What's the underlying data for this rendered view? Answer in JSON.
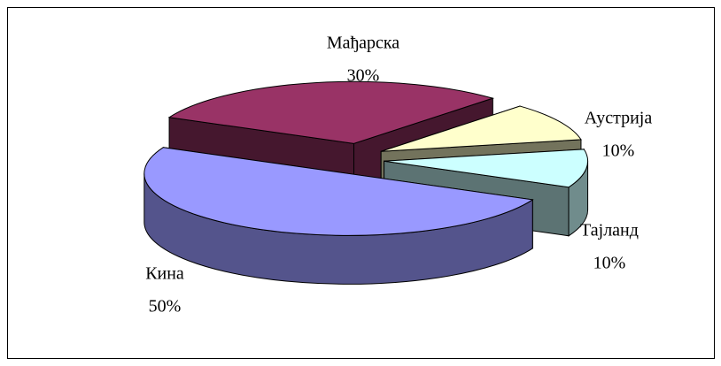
{
  "chart_data": {
    "type": "pie",
    "categories": [
      "Мађарска",
      "Аустрија",
      "Тајланд",
      "Кина"
    ],
    "values": [
      30,
      10,
      10,
      50
    ],
    "value_labels": [
      "30%",
      "10%",
      "10%",
      "50%"
    ],
    "colors": [
      "#993366",
      "#ffffcc",
      "#ccffff",
      "#9999ff"
    ]
  }
}
